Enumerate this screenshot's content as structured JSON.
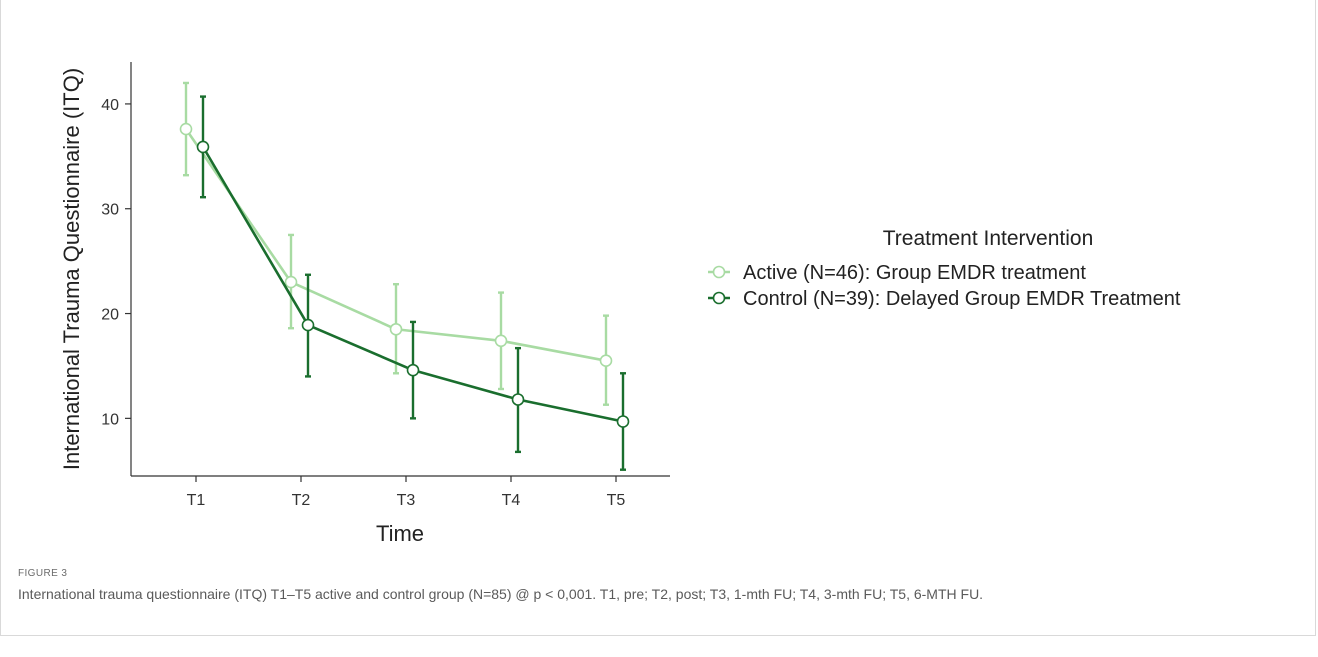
{
  "chart_data": {
    "type": "line",
    "xlabel": "Time",
    "ylabel": "International Trauma Questionnaire (ITQ)",
    "categories": [
      "T1",
      "T2",
      "T3",
      "T4",
      "T5"
    ],
    "ylim": [
      4.5,
      44
    ],
    "yticks": [
      10,
      20,
      30,
      40
    ],
    "grid": false,
    "legend_position": "right",
    "legend_title": "Treatment Intervention",
    "series": [
      {
        "name": "Active (N=46): Group EMDR treatment",
        "color": "#a8dba3",
        "values": [
          37.6,
          23.0,
          18.5,
          17.4,
          15.5
        ],
        "err_low": [
          33.2,
          18.6,
          14.3,
          12.8,
          11.3
        ],
        "err_high": [
          42.0,
          27.5,
          22.8,
          22.0,
          19.8
        ]
      },
      {
        "name": "Control (N=39): Delayed Group EMDR Treatment",
        "color": "#1a6e2e",
        "values": [
          35.9,
          18.9,
          14.6,
          11.8,
          9.7
        ],
        "err_low": [
          31.1,
          14.0,
          10.0,
          6.8,
          5.1
        ],
        "err_high": [
          40.7,
          23.7,
          19.2,
          16.7,
          14.3
        ]
      }
    ]
  },
  "caption": {
    "label": "FIGURE 3",
    "text": "International trauma questionnaire (ITQ) T1–T5 active and control group (N=85) @ p < 0,001. T1, pre; T2, post; T3, 1-mth FU; T4, 3-mth FU; T5, 6-MTH FU."
  }
}
